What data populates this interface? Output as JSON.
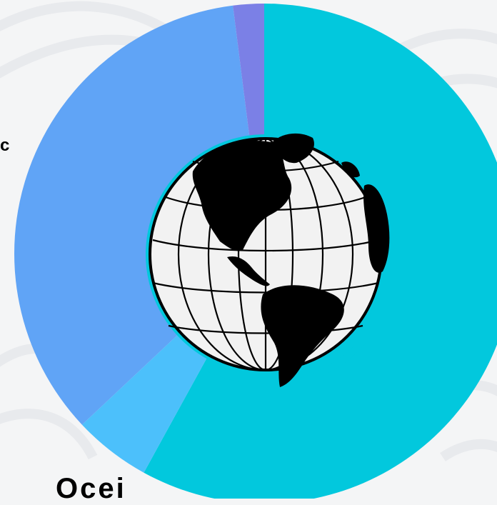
{
  "chart_data": {
    "type": "pie",
    "style": "donut",
    "values": [
      58,
      5,
      35,
      2
    ],
    "colors": [
      "#02c8dd",
      "#4cc0fb",
      "#60a4f6",
      "#7b80e6"
    ],
    "start": "top",
    "direction": "clockwise",
    "center_image": "globe-icon",
    "legend": "none",
    "visible_label_fragments": [
      "c",
      "Ocei"
    ]
  },
  "colors": {
    "background": "#f4f5f6",
    "pattern_lines": "#e8eaed",
    "hole": "#ffffff",
    "land": "#000000"
  }
}
